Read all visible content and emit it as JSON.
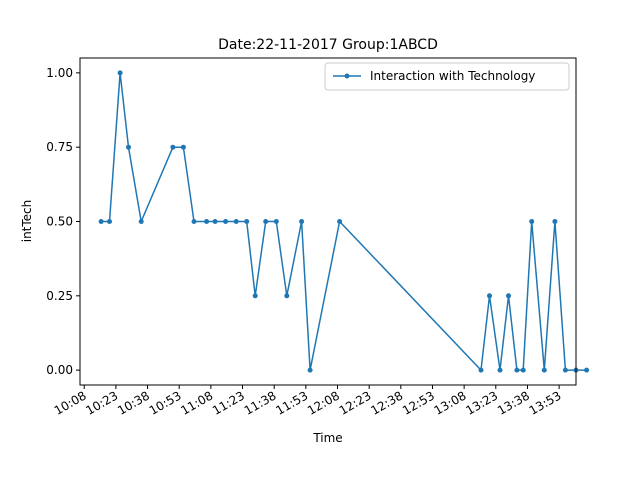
{
  "chart_data": {
    "type": "line",
    "title": "Date:22-11-2017  Group:1ABCD",
    "xlabel": "Time",
    "ylabel": "intTech",
    "x_ticks": [
      "10:08",
      "10:23",
      "10:38",
      "10:53",
      "11:08",
      "11:23",
      "11:38",
      "11:53",
      "12:08",
      "12:23",
      "12:38",
      "12:53",
      "13:08",
      "13:23",
      "13:38",
      "13:53"
    ],
    "y_ticks": [
      "0.00",
      "0.25",
      "0.50",
      "0.75",
      "1.00"
    ],
    "xlim": [
      "10:06",
      "14:01"
    ],
    "ylim": [
      -0.05,
      1.05
    ],
    "grid": false,
    "legend_position": "top-right",
    "color": "#1f77b4",
    "series": [
      {
        "name": "Interaction with Technology",
        "x": [
          "10:16",
          "10:20",
          "10:25",
          "10:29",
          "10:35",
          "10:50",
          "10:55",
          "11:00",
          "11:06",
          "11:10",
          "11:15",
          "11:20",
          "11:25",
          "11:29",
          "11:34",
          "11:39",
          "11:44",
          "11:51",
          "11:55",
          "12:09",
          "13:16",
          "13:20",
          "13:25",
          "13:29",
          "13:33",
          "13:36",
          "13:40",
          "13:46",
          "13:51",
          "13:56",
          "14:01",
          "14:06"
        ],
        "values": [
          0.5,
          0.5,
          1.0,
          0.75,
          0.5,
          0.75,
          0.75,
          0.5,
          0.5,
          0.5,
          0.5,
          0.5,
          0.5,
          0.25,
          0.5,
          0.5,
          0.25,
          0.5,
          0.0,
          0.5,
          0.0,
          0.25,
          0.0,
          0.25,
          0.0,
          0.0,
          0.5,
          0.0,
          0.5,
          0.0,
          0.0,
          0.0
        ]
      }
    ]
  }
}
